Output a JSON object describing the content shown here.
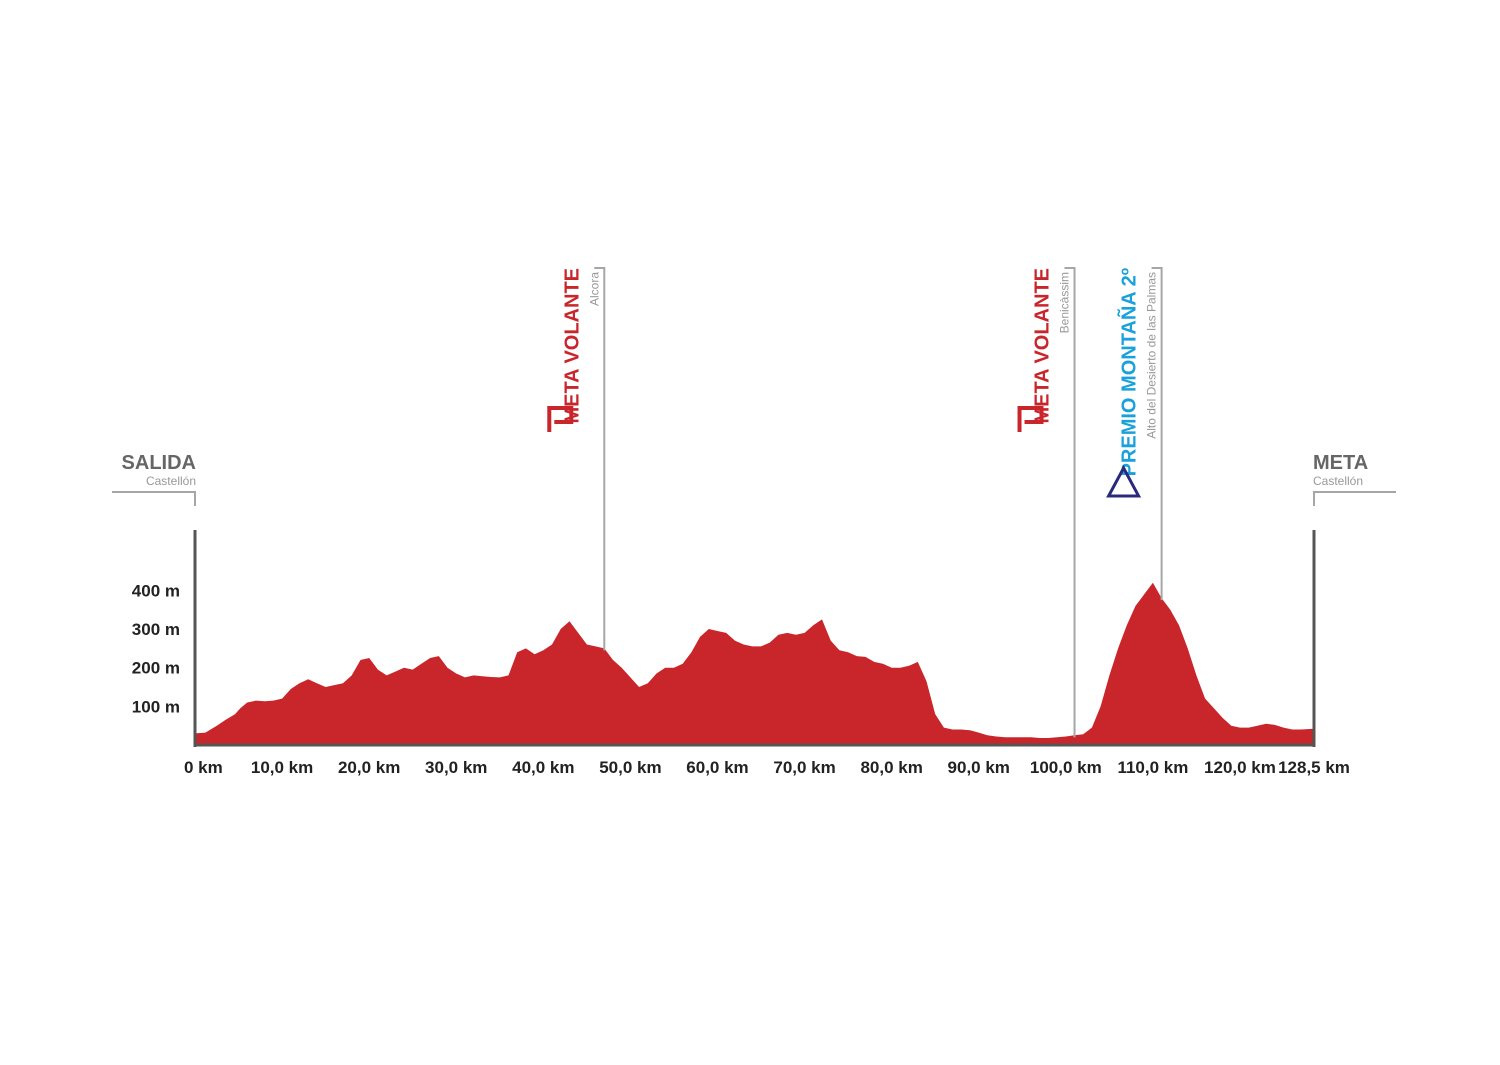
{
  "colors": {
    "profile_fill": "#c9262c",
    "axis": "#555555",
    "marker_line": "#a6a6a6",
    "sprint_red": "#c9262c",
    "mountain_blue": "#1aa1dc",
    "mountain_triangle": "#2b2a7a",
    "endpoint_title": "#666666",
    "subtext": "#999999"
  },
  "start": {
    "title": "SALIDA",
    "place": "Castellón"
  },
  "finish": {
    "title": "META",
    "place": "Castellón"
  },
  "markers": [
    {
      "type": "sprint",
      "title": "META VOLANTE",
      "place": "Alcora",
      "km": 47.0,
      "icon": "sprint-flag-icon"
    },
    {
      "type": "sprint",
      "title": "META VOLANTE",
      "place": "Benicàssim",
      "km": 101.0,
      "icon": "sprint-flag-icon"
    },
    {
      "type": "mountain",
      "title": "PREMIO MONTAÑA 2º",
      "place": "Alto del Desierto de las Palmas",
      "km": 111.0,
      "icon": "mountain-triangle-icon"
    }
  ],
  "chart_data": {
    "type": "area",
    "title": "",
    "xlabel": "",
    "ylabel": "",
    "xlim": [
      0,
      128.5
    ],
    "ylim": [
      0,
      450
    ],
    "grid": false,
    "x_ticks": [
      {
        "value": 0,
        "label": "0 km"
      },
      {
        "value": 10,
        "label": "10,0 km"
      },
      {
        "value": 20,
        "label": "20,0 km"
      },
      {
        "value": 30,
        "label": "30,0 km"
      },
      {
        "value": 40,
        "label": "40,0 km"
      },
      {
        "value": 50,
        "label": "50,0 km"
      },
      {
        "value": 60,
        "label": "60,0 km"
      },
      {
        "value": 70,
        "label": "70,0 km"
      },
      {
        "value": 80,
        "label": "80,0 km"
      },
      {
        "value": 90,
        "label": "90,0 km"
      },
      {
        "value": 100,
        "label": "100,0 km"
      },
      {
        "value": 110,
        "label": "110,0 km"
      },
      {
        "value": 120,
        "label": "120,0 km"
      },
      {
        "value": 128.5,
        "label": "128,5 km"
      }
    ],
    "y_ticks": [
      {
        "value": 100,
        "label": "100 m"
      },
      {
        "value": 200,
        "label": "200 m"
      },
      {
        "value": 300,
        "label": "300 m"
      },
      {
        "value": 400,
        "label": "400 m"
      }
    ],
    "series": [
      {
        "x": [
          0,
          1.2,
          2.5,
          3.5,
          4.6,
          5.2,
          6.0,
          7.0,
          8.0,
          9.0,
          10.0,
          11.0,
          12.0,
          13.0,
          14.0,
          15.0,
          16.0,
          17.0,
          18.0,
          19.0,
          20.0,
          21.0,
          22.0,
          23.0,
          24.0,
          25.0,
          26.0,
          27.0,
          28.0,
          29.0,
          30.0,
          31.0,
          32.0,
          33.0,
          34.0,
          35.0,
          36.0,
          37.0,
          38.0,
          39.0,
          40.0,
          41.0,
          42.0,
          43.0,
          44.0,
          45.0,
          46.0,
          47.0,
          48.0,
          49.0,
          50.0,
          51.0,
          52.0,
          53.0,
          54.0,
          55.0,
          56.0,
          57.0,
          58.0,
          59.0,
          60.0,
          61.0,
          62.0,
          63.0,
          64.0,
          65.0,
          66.0,
          67.0,
          68.0,
          69.0,
          70.0,
          71.0,
          72.0,
          73.0,
          74.0,
          75.0,
          76.0,
          77.0,
          78.0,
          79.0,
          80.0,
          81.0,
          82.0,
          83.0,
          84.0,
          85.0,
          86.0,
          87.0,
          88.0,
          89.0,
          90.0,
          91.0,
          92.0,
          93.0,
          94.0,
          95.0,
          96.0,
          97.0,
          98.0,
          99.0,
          100.0,
          101.0,
          102.0,
          103.0,
          104.0,
          105.0,
          106.0,
          107.0,
          108.0,
          109.0,
          110.0,
          111.0,
          112.0,
          113.0,
          114.0,
          115.0,
          116.0,
          117.0,
          118.0,
          119.0,
          120.0,
          121.0,
          122.0,
          123.0,
          124.0,
          125.0,
          126.0,
          127.0,
          128.5
        ],
        "y": [
          30,
          32,
          50,
          65,
          80,
          95,
          110,
          115,
          113,
          115,
          120,
          145,
          160,
          170,
          160,
          150,
          155,
          160,
          180,
          220,
          225,
          195,
          180,
          190,
          200,
          195,
          210,
          225,
          230,
          200,
          185,
          175,
          180,
          178,
          176,
          175,
          180,
          240,
          250,
          235,
          245,
          260,
          300,
          320,
          290,
          260,
          255,
          250,
          220,
          200,
          175,
          150,
          160,
          185,
          200,
          200,
          210,
          240,
          280,
          300,
          295,
          290,
          270,
          260,
          255,
          255,
          265,
          285,
          290,
          285,
          290,
          310,
          325,
          270,
          245,
          240,
          230,
          228,
          215,
          210,
          200,
          200,
          205,
          215,
          165,
          80,
          45,
          40,
          40,
          38,
          32,
          25,
          22,
          20,
          20,
          20,
          20,
          18,
          18,
          20,
          22,
          25,
          28,
          45,
          100,
          180,
          250,
          310,
          360,
          390,
          420,
          380,
          350,
          310,
          250,
          180,
          120,
          95,
          70,
          50,
          45,
          45,
          50,
          55,
          52,
          45,
          40,
          40,
          42
        ],
        "name": ""
      }
    ]
  }
}
